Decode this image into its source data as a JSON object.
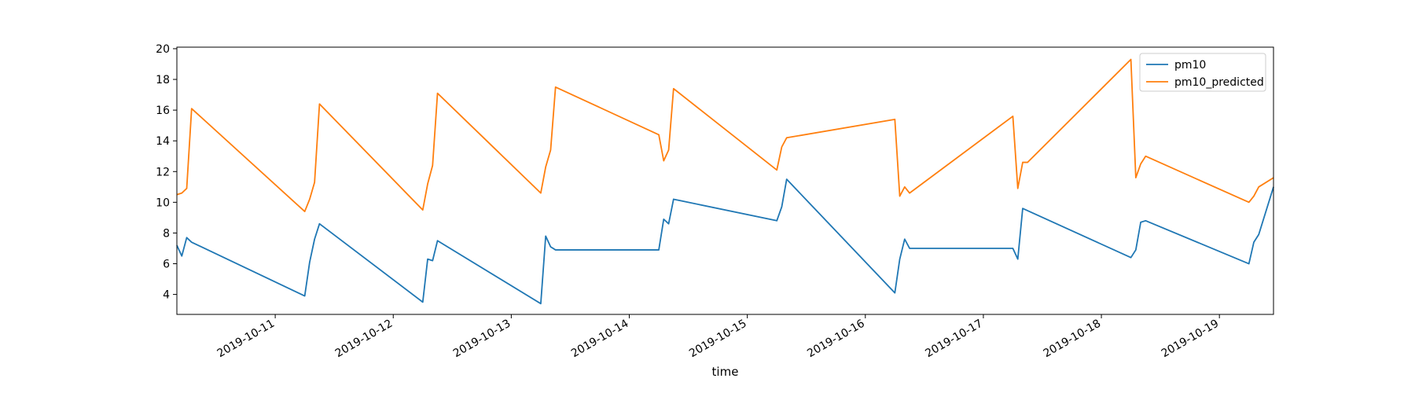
{
  "chart_data": {
    "type": "line",
    "xlabel": "time",
    "ylabel": "",
    "title": "",
    "xlim": [
      "2019-10-10T04:00",
      "2019-10-19T11:00"
    ],
    "ylim": [
      2.7,
      20.1
    ],
    "yticks": [
      4,
      6,
      8,
      10,
      12,
      14,
      16,
      18,
      20
    ],
    "xticks": [
      "2019-10-11",
      "2019-10-12",
      "2019-10-13",
      "2019-10-14",
      "2019-10-15",
      "2019-10-16",
      "2019-10-17",
      "2019-10-18",
      "2019-10-19"
    ],
    "grid": false,
    "legend": "top-right",
    "colors": {
      "pm10": "#1f77b4",
      "pm10_predicted": "#ff7f0e"
    },
    "series": [
      {
        "name": "pm10",
        "points": [
          [
            "2019-10-10T04:00",
            7.2
          ],
          [
            "2019-10-10T05:00",
            6.5
          ],
          [
            "2019-10-10T06:00",
            7.7
          ],
          [
            "2019-10-10T07:00",
            7.4
          ],
          [
            "2019-10-11T06:00",
            3.9
          ],
          [
            "2019-10-11T07:00",
            6.1
          ],
          [
            "2019-10-11T08:00",
            7.6
          ],
          [
            "2019-10-11T09:00",
            8.6
          ],
          [
            "2019-10-12T06:00",
            3.5
          ],
          [
            "2019-10-12T07:00",
            6.3
          ],
          [
            "2019-10-12T08:00",
            6.2
          ],
          [
            "2019-10-12T09:00",
            7.5
          ],
          [
            "2019-10-13T06:00",
            3.4
          ],
          [
            "2019-10-13T07:00",
            7.8
          ],
          [
            "2019-10-13T08:00",
            7.1
          ],
          [
            "2019-10-13T09:00",
            6.9
          ],
          [
            "2019-10-14T06:00",
            6.9
          ],
          [
            "2019-10-14T07:00",
            8.9
          ],
          [
            "2019-10-14T08:00",
            8.6
          ],
          [
            "2019-10-14T09:00",
            10.2
          ],
          [
            "2019-10-15T06:00",
            8.8
          ],
          [
            "2019-10-15T07:00",
            9.7
          ],
          [
            "2019-10-15T08:00",
            11.5
          ],
          [
            "2019-10-16T06:00",
            4.1
          ],
          [
            "2019-10-16T07:00",
            6.3
          ],
          [
            "2019-10-16T08:00",
            7.6
          ],
          [
            "2019-10-16T09:00",
            7.0
          ],
          [
            "2019-10-17T06:00",
            7.0
          ],
          [
            "2019-10-17T07:00",
            6.3
          ],
          [
            "2019-10-17T08:00",
            9.6
          ],
          [
            "2019-10-18T06:00",
            6.4
          ],
          [
            "2019-10-18T07:00",
            6.9
          ],
          [
            "2019-10-18T08:00",
            8.7
          ],
          [
            "2019-10-18T09:00",
            8.8
          ],
          [
            "2019-10-19T06:00",
            6.0
          ],
          [
            "2019-10-19T07:00",
            7.4
          ],
          [
            "2019-10-19T08:00",
            7.9
          ],
          [
            "2019-10-19T11:00",
            11.0
          ]
        ]
      },
      {
        "name": "pm10_predicted",
        "points": [
          [
            "2019-10-10T04:00",
            10.5
          ],
          [
            "2019-10-10T05:00",
            10.6
          ],
          [
            "2019-10-10T06:00",
            10.9
          ],
          [
            "2019-10-10T07:00",
            16.1
          ],
          [
            "2019-10-11T06:00",
            9.4
          ],
          [
            "2019-10-11T07:00",
            10.2
          ],
          [
            "2019-10-11T08:00",
            11.3
          ],
          [
            "2019-10-11T09:00",
            16.4
          ],
          [
            "2019-10-12T06:00",
            9.5
          ],
          [
            "2019-10-12T07:00",
            11.2
          ],
          [
            "2019-10-12T08:00",
            12.4
          ],
          [
            "2019-10-12T09:00",
            17.1
          ],
          [
            "2019-10-13T06:00",
            10.6
          ],
          [
            "2019-10-13T07:00",
            12.3
          ],
          [
            "2019-10-13T08:00",
            13.4
          ],
          [
            "2019-10-13T09:00",
            17.5
          ],
          [
            "2019-10-14T06:00",
            14.4
          ],
          [
            "2019-10-14T07:00",
            12.7
          ],
          [
            "2019-10-14T08:00",
            13.4
          ],
          [
            "2019-10-14T09:00",
            17.4
          ],
          [
            "2019-10-15T06:00",
            12.1
          ],
          [
            "2019-10-15T07:00",
            13.6
          ],
          [
            "2019-10-15T08:00",
            14.2
          ],
          [
            "2019-10-16T06:00",
            15.4
          ],
          [
            "2019-10-16T07:00",
            10.4
          ],
          [
            "2019-10-16T08:00",
            11.0
          ],
          [
            "2019-10-16T09:00",
            10.6
          ],
          [
            "2019-10-17T06:00",
            15.6
          ],
          [
            "2019-10-17T07:00",
            10.9
          ],
          [
            "2019-10-17T08:00",
            12.6
          ],
          [
            "2019-10-17T09:00",
            12.6
          ],
          [
            "2019-10-18T06:00",
            19.3
          ],
          [
            "2019-10-18T07:00",
            11.6
          ],
          [
            "2019-10-18T08:00",
            12.5
          ],
          [
            "2019-10-18T09:00",
            13.0
          ],
          [
            "2019-10-19T06:00",
            10.0
          ],
          [
            "2019-10-19T07:00",
            10.4
          ],
          [
            "2019-10-19T08:00",
            11.0
          ],
          [
            "2019-10-19T11:00",
            11.6
          ]
        ]
      }
    ]
  }
}
